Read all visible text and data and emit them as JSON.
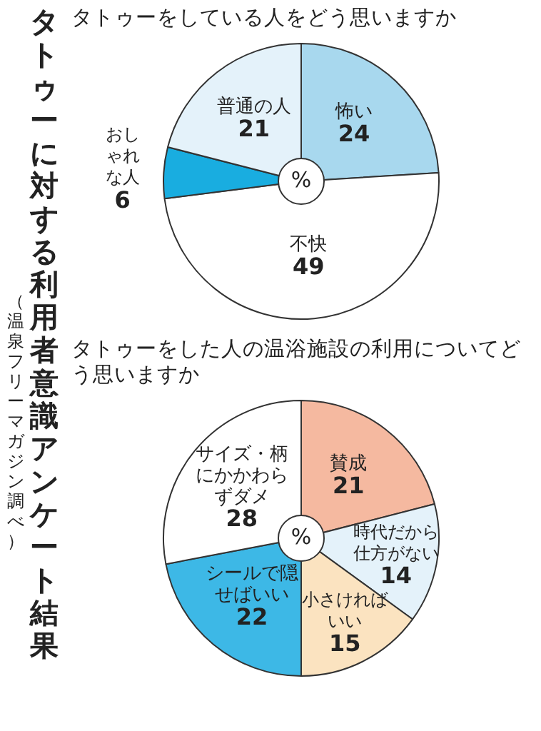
{
  "chart_data": [
    {
      "type": "other",
      "title": "タトゥーに対する利用者意識アンケート結果",
      "annotations": [
        "（温泉フリーマガジン調べ）"
      ]
    },
    {
      "type": "pie",
      "title": "タトゥーをしている人をどう思いますか",
      "categories": [
        "怖い",
        "不快",
        "おしゃれな人",
        "普通の人"
      ],
      "values": [
        24,
        49,
        6,
        21
      ],
      "colors": [
        "#a8d8ee",
        "#ffffff",
        "#19ade0",
        "#e4f2fa"
      ],
      "data_labels": true,
      "annotations": [
        "%"
      ]
    },
    {
      "type": "pie",
      "title": "タトゥーをした人の温浴施設の利用についてどう思いますか",
      "categories": [
        "賛成",
        "時代だから仕方がない",
        "小さければいい",
        "シールで隠せばいい",
        "サイズ・柄にかかわらずダメ"
      ],
      "values": [
        21,
        14,
        15,
        22,
        28
      ],
      "colors": [
        "#f5b9a0",
        "#e4f2fa",
        "#fbe3c0",
        "#3db8e6",
        "#ffffff"
      ],
      "data_labels": true,
      "annotations": [
        "%"
      ]
    }
  ]
}
